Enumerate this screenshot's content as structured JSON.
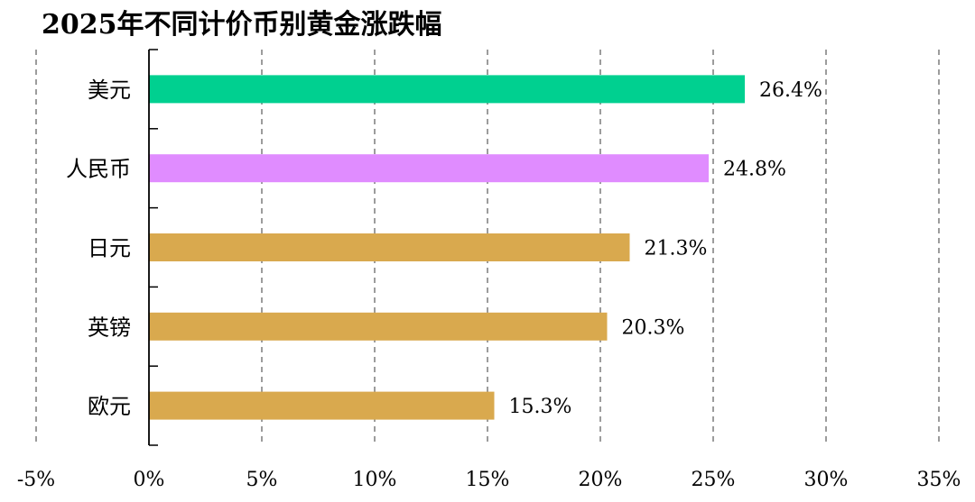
{
  "chart_data": {
    "type": "bar",
    "orientation": "horizontal",
    "title": "2025年不同计价币别黄金涨跌幅",
    "categories": [
      "美元",
      "人民币",
      "日元",
      "英镑",
      "欧元"
    ],
    "values": [
      26.4,
      24.8,
      21.3,
      20.3,
      15.3
    ],
    "value_labels": [
      "26.4%",
      "24.8%",
      "21.3%",
      "20.3%",
      "15.3%"
    ],
    "colors": [
      "#00d090",
      "#e08cff",
      "#d9a94e",
      "#d9a94e",
      "#d9a94e"
    ],
    "xlim": [
      -5,
      35
    ],
    "xticks": [
      -5,
      0,
      5,
      10,
      15,
      20,
      25,
      30,
      35
    ],
    "xtick_labels": [
      "-5%",
      "0%",
      "5%",
      "10%",
      "15%",
      "20%",
      "25%",
      "30%",
      "35%"
    ],
    "grid": "vertical-dashed",
    "xlabel": "",
    "ylabel": ""
  }
}
